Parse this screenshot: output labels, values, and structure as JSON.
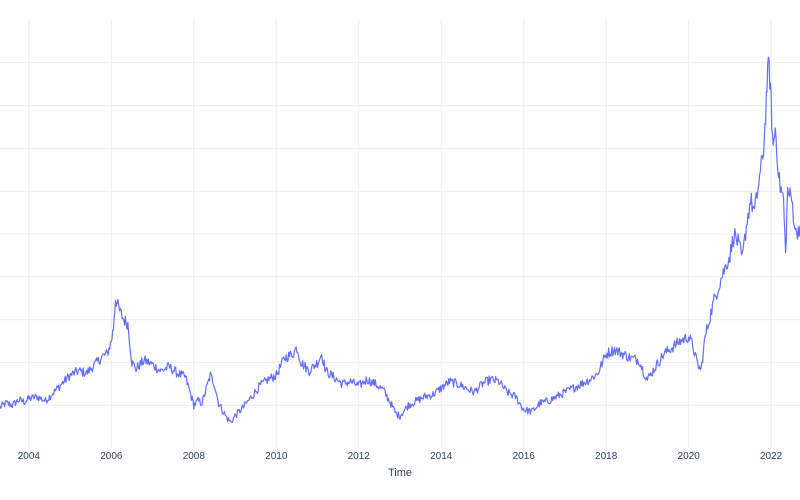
{
  "chart_data": {
    "type": "line",
    "title": "",
    "xlabel": "Time",
    "ylabel": "",
    "xlim": [
      2003.3,
      2022.7
    ],
    "ylim": [
      0,
      100
    ],
    "x_ticks": [
      2004,
      2006,
      2008,
      2010,
      2012,
      2014,
      2016,
      2018,
      2020,
      2022
    ],
    "x_tick_labels": [
      "2004",
      "2006",
      "2008",
      "2010",
      "2012",
      "2014",
      "2016",
      "2018",
      "2020",
      "2022"
    ],
    "y_grid_values": [
      10,
      20,
      30,
      40,
      50,
      60,
      70,
      80,
      90
    ],
    "grid": true,
    "series": [
      {
        "color": "#636efa",
        "x": [
          2003.3,
          2003.45,
          2003.6,
          2003.75,
          2003.9,
          2004.0,
          2004.2,
          2004.4,
          2004.6,
          2004.8,
          2005.0,
          2005.2,
          2005.4,
          2005.6,
          2005.8,
          2005.9,
          2006.0,
          2006.05,
          2006.1,
          2006.2,
          2006.3,
          2006.4,
          2006.5,
          2006.6,
          2006.8,
          2007.0,
          2007.2,
          2007.4,
          2007.6,
          2007.8,
          2008.0,
          2008.1,
          2008.2,
          2008.4,
          2008.5,
          2008.6,
          2008.8,
          2008.9,
          2009.0,
          2009.2,
          2009.4,
          2009.6,
          2009.8,
          2010.0,
          2010.2,
          2010.4,
          2010.5,
          2010.6,
          2010.8,
          2011.0,
          2011.1,
          2011.2,
          2011.4,
          2011.6,
          2011.8,
          2012.0,
          2012.2,
          2012.4,
          2012.6,
          2012.8,
          2012.9,
          2013.0,
          2013.2,
          2013.4,
          2013.6,
          2013.8,
          2014.0,
          2014.2,
          2014.4,
          2014.6,
          2014.8,
          2015.0,
          2015.2,
          2015.4,
          2015.6,
          2015.8,
          2016.0,
          2016.2,
          2016.4,
          2016.6,
          2016.8,
          2017.0,
          2017.2,
          2017.4,
          2017.6,
          2017.8,
          2018.0,
          2018.2,
          2018.4,
          2018.6,
          2018.8,
          2018.9,
          2019.0,
          2019.2,
          2019.4,
          2019.6,
          2019.8,
          2020.0,
          2020.1,
          2020.2,
          2020.3,
          2020.4,
          2020.6,
          2020.8,
          2021.0,
          2021.1,
          2021.2,
          2021.3,
          2021.4,
          2021.5,
          2021.6,
          2021.7,
          2021.8,
          2021.85,
          2021.9,
          2021.95,
          2022.0,
          2022.05,
          2022.1,
          2022.2,
          2022.3,
          2022.35,
          2022.4,
          2022.5,
          2022.6,
          2022.7
        ],
        "y": [
          9.5,
          10.5,
          10.0,
          11.2,
          10.8,
          11.5,
          12.0,
          11.0,
          13.0,
          15.0,
          17.0,
          18.0,
          17.5,
          19.5,
          21.5,
          22.0,
          25.0,
          28.0,
          35.0,
          32.0,
          30.0,
          29.0,
          20.0,
          18.5,
          20.5,
          19.5,
          18.0,
          19.0,
          17.5,
          16.5,
          10.0,
          11.0,
          10.5,
          17.0,
          15.0,
          10.5,
          7.0,
          6.0,
          7.5,
          9.5,
          12.0,
          14.5,
          16.0,
          17.0,
          21.0,
          22.0,
          23.5,
          20.0,
          18.0,
          20.0,
          22.0,
          18.0,
          16.5,
          15.0,
          15.5,
          14.5,
          16.0,
          15.0,
          13.5,
          10.0,
          8.0,
          7.5,
          10.0,
          11.0,
          12.0,
          12.5,
          14.0,
          15.5,
          15.0,
          14.0,
          13.0,
          15.0,
          16.0,
          15.5,
          13.0,
          12.0,
          9.0,
          8.5,
          10.5,
          11.0,
          12.0,
          13.0,
          14.0,
          15.0,
          16.0,
          17.5,
          22.0,
          23.0,
          22.0,
          21.0,
          20.5,
          18.0,
          16.0,
          19.0,
          22.0,
          23.5,
          25.0,
          26.0,
          24.0,
          20.0,
          18.0,
          26.0,
          34.0,
          40.0,
          45.0,
          50.0,
          48.0,
          44.0,
          52.0,
          58.0,
          55.0,
          62.0,
          68.0,
          75.0,
          85.0,
          90.0,
          80.0,
          70.0,
          75.0,
          62.0,
          58.0,
          45.0,
          60.0,
          58.0,
          50.0,
          52.0
        ]
      }
    ]
  }
}
